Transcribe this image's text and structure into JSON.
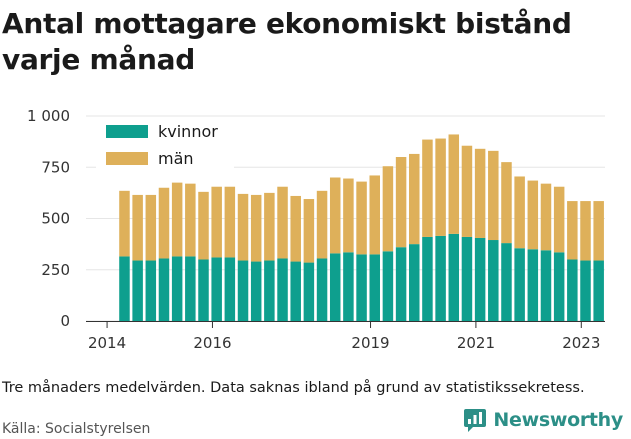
{
  "header": {
    "title": "Antal mottagare ekonomiskt bistånd varje månad"
  },
  "footer": {
    "note": "Tre månaders medelvärden. Data saknas ibland på grund av statistikssekretess.",
    "source": "Källa: Socialstyrelsen",
    "brand": "Newsworthy"
  },
  "colors": {
    "kvinnor": "#0e9f8e",
    "man": "#deb05a",
    "brand": "#2c8f87"
  },
  "chart_data": {
    "type": "bar",
    "stacked": true,
    "title": "Antal mottagare ekonomiskt bistånd varje månad",
    "xlabel": "",
    "ylabel": "",
    "ylim": [
      0,
      1000
    ],
    "yticks": [
      0,
      250,
      500,
      750,
      1000
    ],
    "ytick_labels": [
      "0",
      "250",
      "500",
      "750",
      "1 000"
    ],
    "xticks": [
      2014,
      2016,
      2019,
      2021,
      2023
    ],
    "xlim": [
      2013.6,
      2023.45
    ],
    "grid": true,
    "legend": "top-left",
    "x": [
      2014.33,
      2014.58,
      2014.83,
      2015.08,
      2015.33,
      2015.58,
      2015.83,
      2016.08,
      2016.33,
      2016.58,
      2016.83,
      2017.08,
      2017.33,
      2017.58,
      2017.83,
      2018.08,
      2018.33,
      2018.58,
      2018.83,
      2019.08,
      2019.33,
      2019.58,
      2019.83,
      2020.08,
      2020.33,
      2020.58,
      2020.83,
      2021.08,
      2021.33,
      2021.58,
      2021.83,
      2022.08,
      2022.33,
      2022.58,
      2022.83,
      2023.08,
      2023.33
    ],
    "series": [
      {
        "name": "kvinnor",
        "values": [
          315,
          295,
          295,
          305,
          315,
          315,
          300,
          310,
          310,
          295,
          290,
          295,
          305,
          290,
          285,
          305,
          330,
          335,
          325,
          325,
          340,
          360,
          375,
          410,
          415,
          425,
          410,
          405,
          395,
          380,
          355,
          350,
          345,
          335,
          300,
          295,
          295
        ]
      },
      {
        "name": "män",
        "values": [
          320,
          320,
          320,
          345,
          360,
          355,
          330,
          345,
          345,
          325,
          325,
          330,
          350,
          320,
          310,
          330,
          370,
          360,
          355,
          385,
          415,
          440,
          440,
          475,
          475,
          485,
          445,
          435,
          435,
          395,
          350,
          335,
          325,
          320,
          285,
          290,
          290
        ]
      }
    ]
  }
}
